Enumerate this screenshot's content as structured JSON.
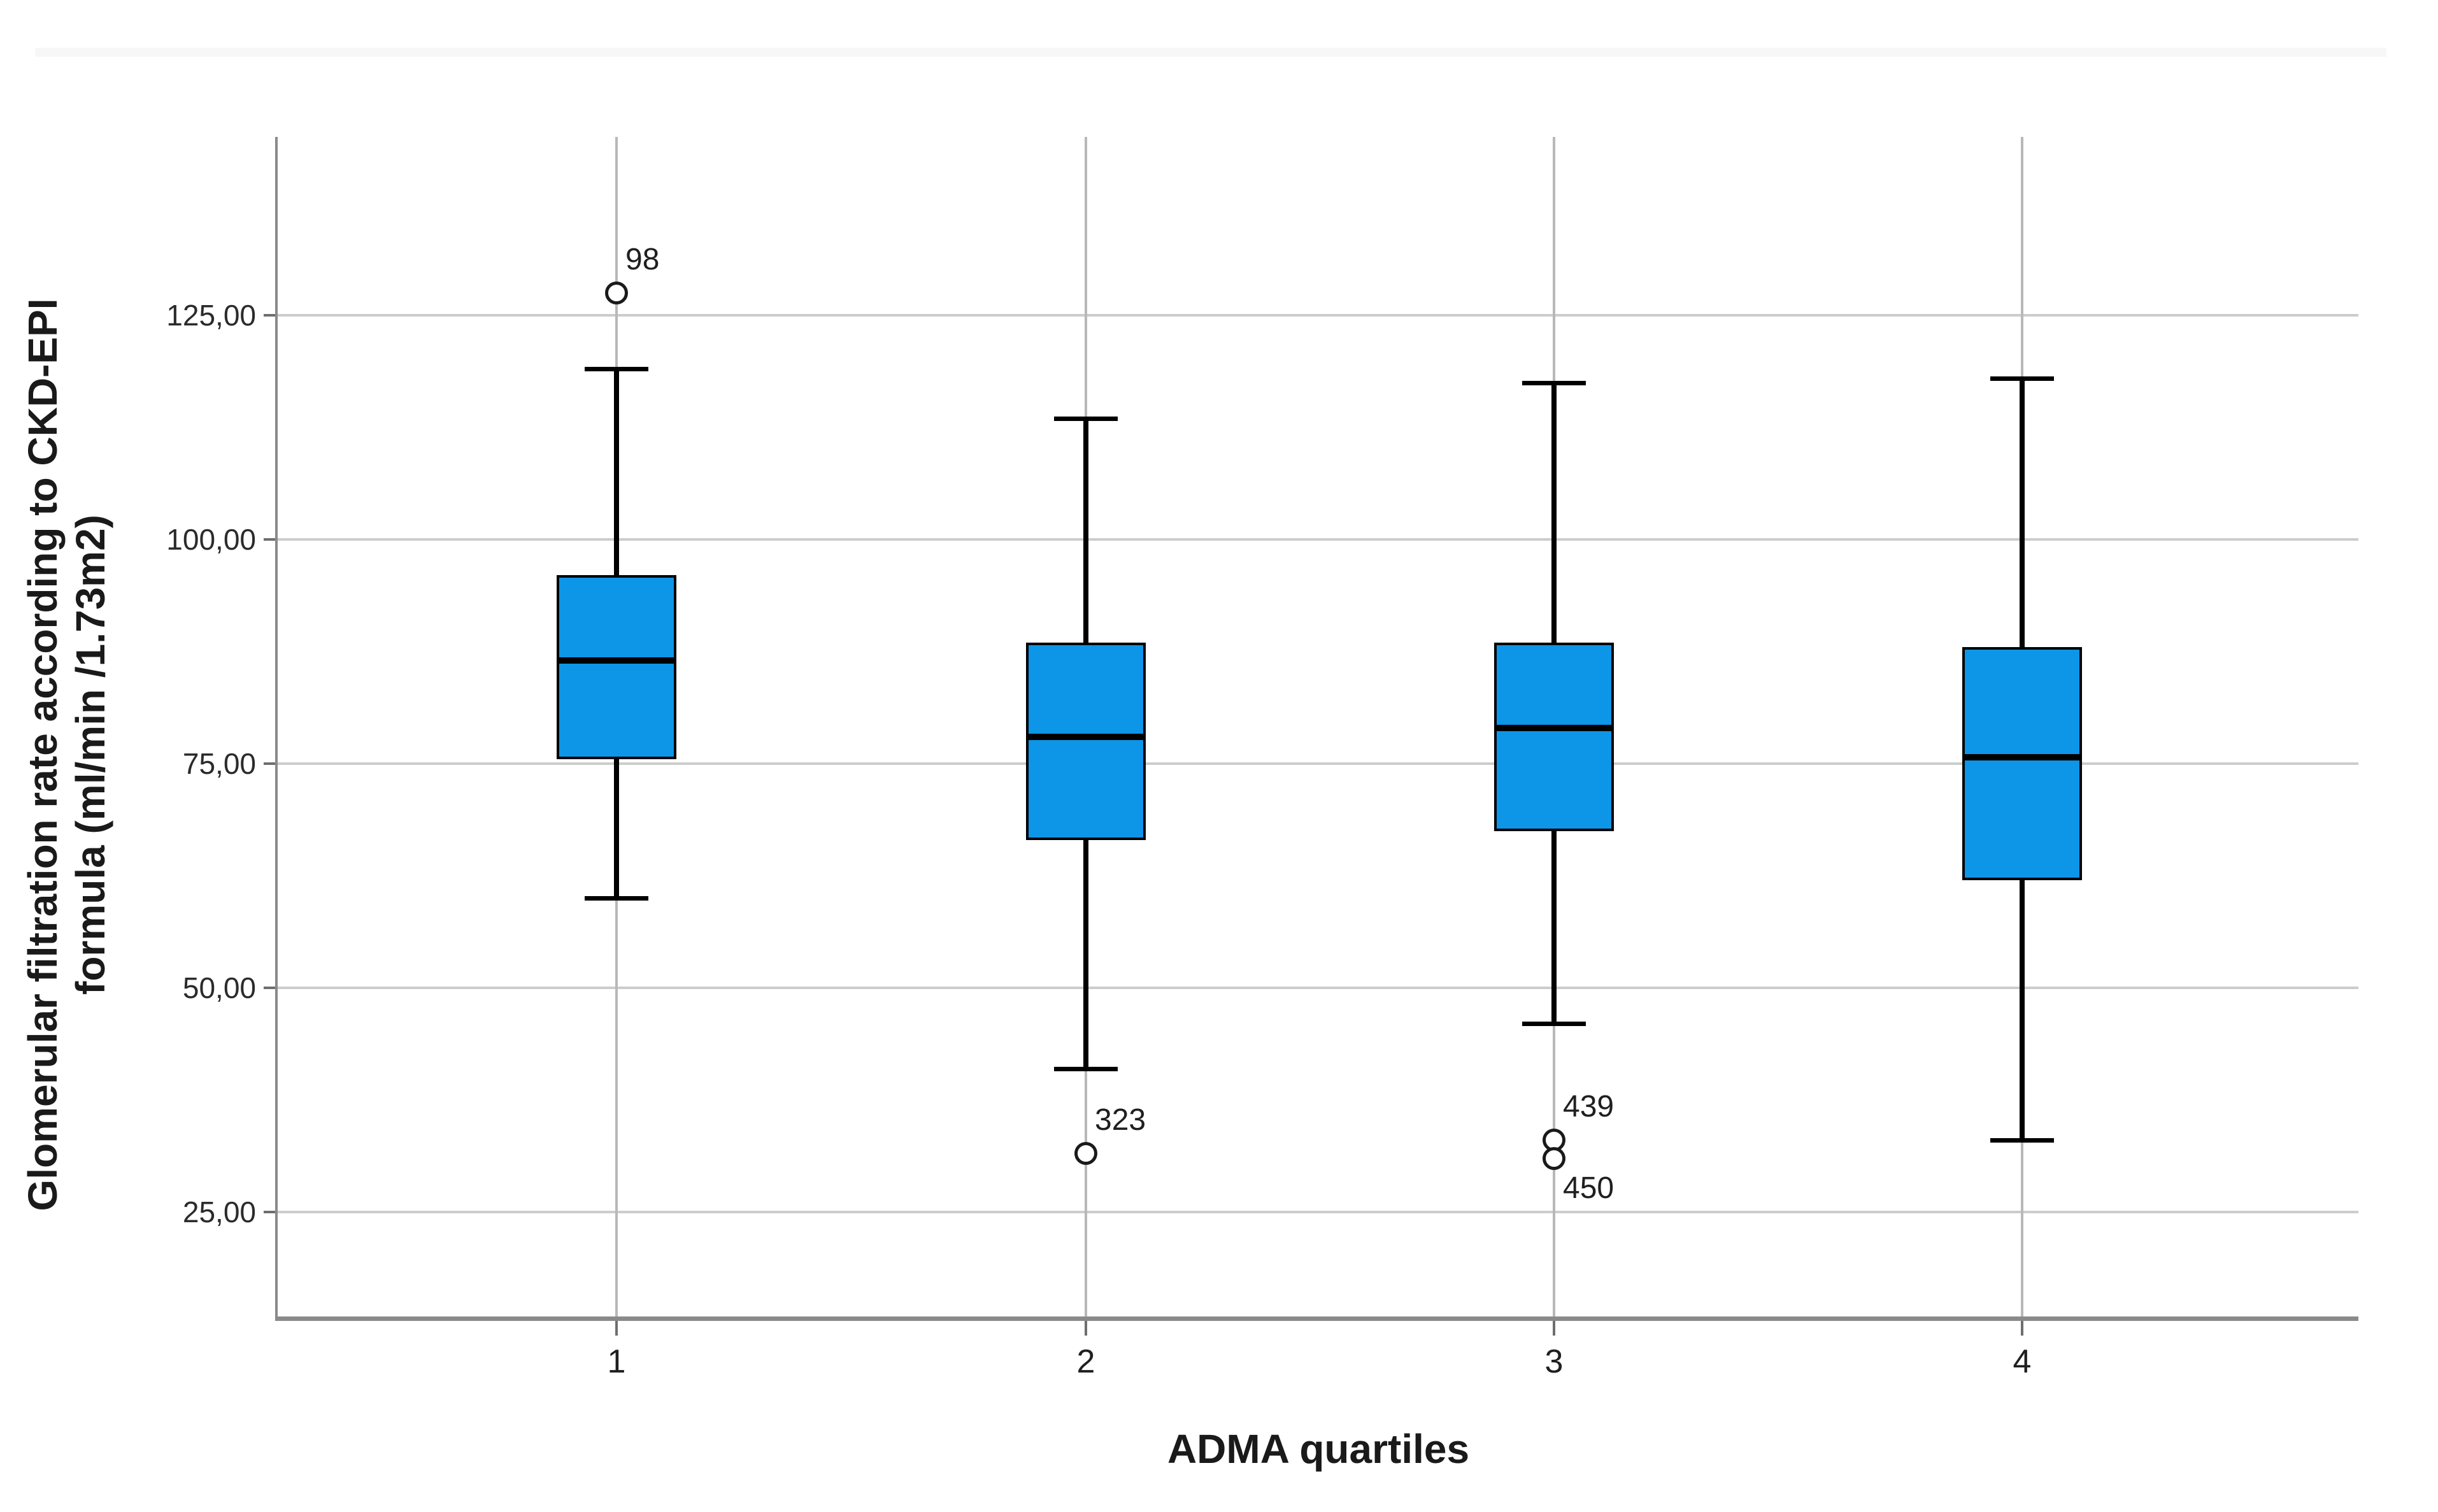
{
  "page": {
    "top_band_color": "#f7f7f7",
    "background": "#ffffff"
  },
  "chart_data": {
    "type": "box",
    "title": "",
    "xlabel": "ADMA quartiles",
    "ylabel": "Glomerular filtration rate according to CKD-EPI formula (ml/min /1.73m2)",
    "ylabel_lines": [
      "Glomerular filtration rate according to CKD-EPI",
      "formula (ml/min /1.73m2)"
    ],
    "x_ticks": [
      "1",
      "2",
      "3",
      "4"
    ],
    "y_ticks": [
      {
        "value": 125,
        "label": "125,00"
      },
      {
        "value": 100,
        "label": "100,00"
      },
      {
        "value": 75,
        "label": "75,00"
      },
      {
        "value": 50,
        "label": "50,00"
      },
      {
        "value": 25,
        "label": "25,00"
      }
    ],
    "ylim": [
      13,
      145
    ],
    "grid": "horizontal-only",
    "legend": "none",
    "categories": [
      "1",
      "2",
      "3",
      "4"
    ],
    "boxes": [
      {
        "category": "1",
        "whisker_low": 60,
        "q1": 75.5,
        "median": 86.5,
        "q3": 96,
        "whisker_high": 119,
        "outliers": [
          {
            "value": 127.5,
            "label": "98",
            "label_side": "above"
          }
        ]
      },
      {
        "category": "2",
        "whisker_low": 41,
        "q1": 66.5,
        "median": 78,
        "q3": 88.5,
        "whisker_high": 113.5,
        "outliers": [
          {
            "value": 31.5,
            "label": "323",
            "label_side": "above"
          }
        ]
      },
      {
        "category": "3",
        "whisker_low": 46,
        "q1": 67.5,
        "median": 79,
        "q3": 88.5,
        "whisker_high": 117.5,
        "outliers": [
          {
            "value": 33,
            "label": "439",
            "label_side": "above"
          },
          {
            "value": 31,
            "label": "450",
            "label_side": "below"
          }
        ]
      },
      {
        "category": "4",
        "whisker_low": 33,
        "q1": 62,
        "median": 75.7,
        "q3": 88,
        "whisker_high": 118,
        "outliers": []
      }
    ],
    "colors": {
      "box_fill": "#0d95e8",
      "box_border": "#000000",
      "median_line": "#000000",
      "whisker": "#000000",
      "outlier_ring": "#1a1a1a",
      "gridline": "#cccccc",
      "category_line": "#b8b8b8",
      "axis_spine": "#8a8a8a",
      "tick_mark": "#6e6e6e",
      "text": "#1a1a1a"
    }
  }
}
